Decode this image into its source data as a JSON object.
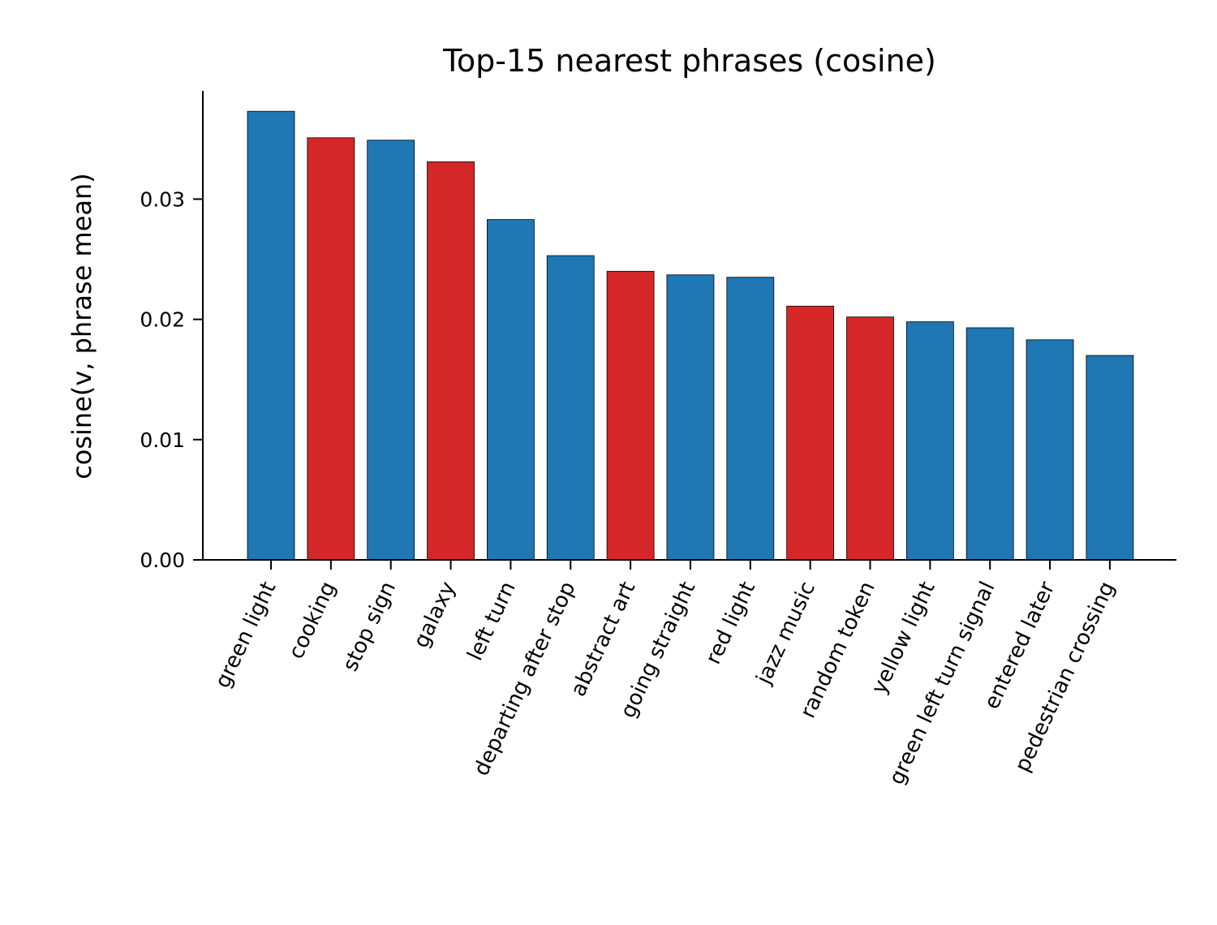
{
  "chart_data": {
    "type": "bar",
    "title": "Top-15 nearest phrases (cosine)",
    "xlabel": "",
    "ylabel": "cosine(v, phrase mean)",
    "categories": [
      "green light",
      "cooking",
      "stop sign",
      "galaxy",
      "left turn",
      "departing after stop",
      "abstract art",
      "going straight",
      "red light",
      "jazz music",
      "random token",
      "yellow light",
      "green left turn signal",
      "entered later",
      "pedestrian crossing"
    ],
    "values": [
      0.0373,
      0.0351,
      0.0349,
      0.0331,
      0.0283,
      0.0253,
      0.024,
      0.0237,
      0.0235,
      0.0211,
      0.0202,
      0.0198,
      0.0193,
      0.0183,
      0.017
    ],
    "bar_groups": [
      "blue",
      "red",
      "blue",
      "red",
      "blue",
      "blue",
      "red",
      "blue",
      "blue",
      "red",
      "red",
      "blue",
      "blue",
      "blue",
      "blue"
    ],
    "colors": {
      "blue": "#1f77b4",
      "red": "#d62728"
    },
    "ylim": [
      0,
      0.039
    ],
    "yticks": [
      0.0,
      0.01,
      0.02,
      0.03
    ],
    "ytick_labels": [
      "0.00",
      "0.01",
      "0.02",
      "0.03"
    ],
    "grid": false,
    "legend": "none"
  }
}
